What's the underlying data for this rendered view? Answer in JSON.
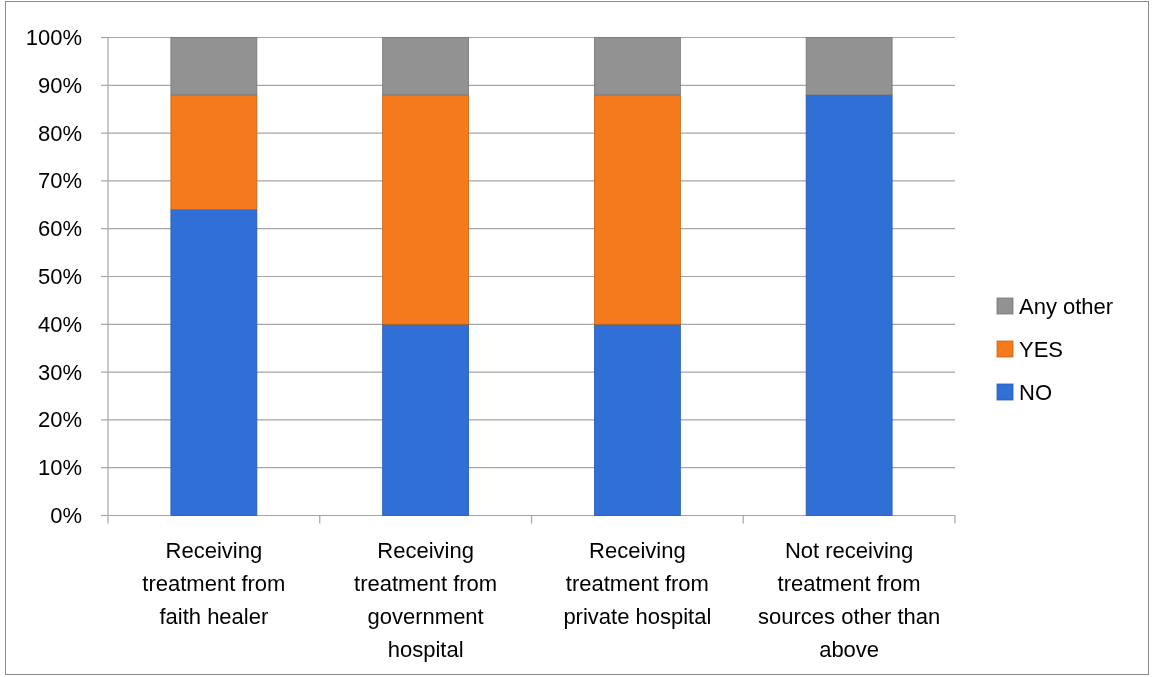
{
  "chart_data": {
    "type": "bar",
    "stacked": true,
    "categories": [
      "Receiving treatment from faith healer",
      "Receiving treatment from government hospital",
      "Receiving treatment from private hospital",
      "Not receiving treatment from sources other than above"
    ],
    "series": [
      {
        "name": "NO",
        "color": "#3070d6",
        "values": [
          64,
          40,
          40,
          88
        ]
      },
      {
        "name": "YES",
        "color": "#f47a1c",
        "values": [
          24,
          48,
          48,
          0
        ]
      },
      {
        "name": "Any other",
        "color": "#929292",
        "values": [
          12,
          12,
          12,
          12
        ]
      }
    ],
    "ylim": [
      0,
      100
    ],
    "yticks": [
      {
        "value": 0,
        "label": "0%"
      },
      {
        "value": 10,
        "label": "10%"
      },
      {
        "value": 20,
        "label": "20%"
      },
      {
        "value": 30,
        "label": "30%"
      },
      {
        "value": 40,
        "label": "40%"
      },
      {
        "value": 50,
        "label": "50%"
      },
      {
        "value": 60,
        "label": "60%"
      },
      {
        "value": 70,
        "label": "70%"
      },
      {
        "value": 80,
        "label": "80%"
      },
      {
        "value": 90,
        "label": "90%"
      },
      {
        "value": 100,
        "label": "100%"
      }
    ],
    "grid": "y",
    "legend": "right"
  }
}
